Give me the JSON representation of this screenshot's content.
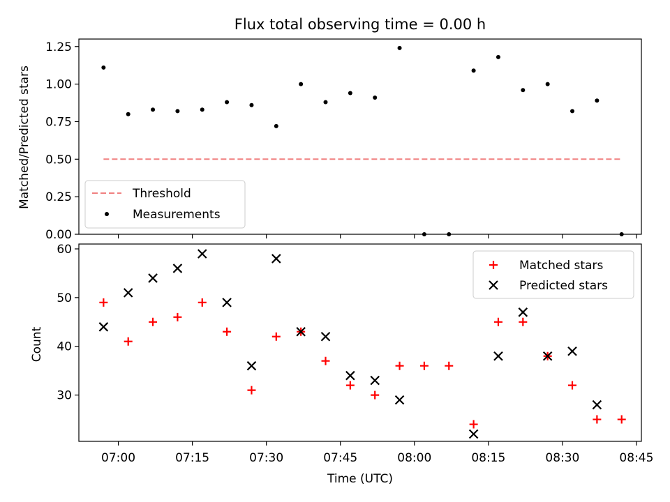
{
  "title": "Flux total observing time = 0.00 h",
  "chart_data": [
    {
      "type": "scatter",
      "ylabel": "Matched/Predicted stars",
      "xlabel": "",
      "ylim": [
        0,
        1.3
      ],
      "xlim": [
        "06:52",
        "08:46"
      ],
      "yticks": [
        "0.00",
        "0.25",
        "0.50",
        "0.75",
        "1.00",
        "1.25"
      ],
      "xticks": [
        "07:00",
        "07:15",
        "07:30",
        "07:45",
        "08:00",
        "08:15",
        "08:30",
        "08:45"
      ],
      "legend_position": "lower-left",
      "x": [
        "06:57",
        "07:02",
        "07:07",
        "07:12",
        "07:17",
        "07:22",
        "07:27",
        "07:32",
        "07:37",
        "07:42",
        "07:47",
        "07:52",
        "07:57",
        "08:02",
        "08:07",
        "08:12",
        "08:17",
        "08:22",
        "08:27",
        "08:32",
        "08:37",
        "08:42"
      ],
      "threshold": {
        "name": "Threshold",
        "value": 0.5,
        "x_start": "06:57",
        "x_end": "08:42",
        "color": "#f08080"
      },
      "series": [
        {
          "name": "Measurements",
          "color": "#000000",
          "values": [
            1.11,
            0.8,
            0.83,
            0.82,
            0.83,
            0.88,
            0.86,
            0.72,
            1.0,
            0.88,
            0.94,
            0.91,
            1.24,
            0.0,
            0.0,
            1.09,
            1.18,
            0.96,
            1.0,
            0.82,
            0.89,
            0.0
          ]
        }
      ]
    },
    {
      "type": "scatter",
      "ylabel": "Count",
      "xlabel": "Time (UTC)",
      "ylim": [
        20.5,
        61
      ],
      "xlim": [
        "06:52",
        "08:46"
      ],
      "yticks": [
        "30",
        "40",
        "50",
        "60"
      ],
      "xticks": [
        "07:00",
        "07:15",
        "07:30",
        "07:45",
        "08:00",
        "08:15",
        "08:30",
        "08:45"
      ],
      "legend_position": "upper-right",
      "x": [
        "06:57",
        "07:02",
        "07:07",
        "07:12",
        "07:17",
        "07:22",
        "07:27",
        "07:32",
        "07:37",
        "07:42",
        "07:47",
        "07:52",
        "07:57",
        "08:02",
        "08:07",
        "08:12",
        "08:17",
        "08:22",
        "08:27",
        "08:32",
        "08:37",
        "08:42"
      ],
      "series": [
        {
          "name": "Matched stars",
          "marker": "plus",
          "color": "#ff0000",
          "values": [
            49,
            41,
            45,
            46,
            49,
            43,
            31,
            42,
            43,
            37,
            32,
            30,
            36,
            36,
            36,
            24,
            45,
            45,
            38,
            32,
            25,
            25
          ]
        },
        {
          "name": "Predicted stars",
          "marker": "x",
          "color": "#000000",
          "values": [
            44,
            51,
            54,
            56,
            59,
            49,
            36,
            58,
            43,
            42,
            34,
            33,
            29,
            null,
            null,
            22,
            38,
            47,
            38,
            39,
            28,
            null
          ]
        }
      ]
    }
  ]
}
